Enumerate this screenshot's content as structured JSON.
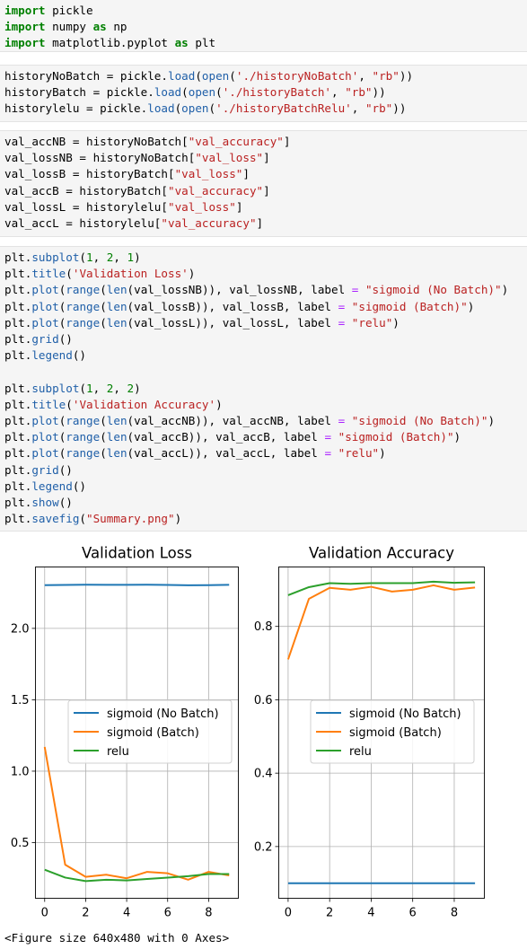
{
  "cells": [
    {
      "lines": [
        [
          [
            "kw",
            "import"
          ],
          [
            "t",
            " pickle"
          ]
        ],
        [
          [
            "kw",
            "import"
          ],
          [
            "t",
            " numpy "
          ],
          [
            "kw",
            "as"
          ],
          [
            "t",
            " np"
          ]
        ],
        [
          [
            "kw",
            "import"
          ],
          [
            "t",
            " matplotlib.pyplot "
          ],
          [
            "kw",
            "as"
          ],
          [
            "t",
            " plt"
          ]
        ]
      ]
    },
    {
      "lines": [
        [
          [
            "t",
            "historyNoBatch = pickle."
          ],
          [
            "fn",
            "load"
          ],
          [
            "t",
            "("
          ],
          [
            "fn",
            "open"
          ],
          [
            "t",
            "("
          ],
          [
            "str",
            "'./historyNoBatch'"
          ],
          [
            "t",
            ", "
          ],
          [
            "str",
            "\"rb\""
          ],
          [
            "t",
            "))"
          ]
        ],
        [
          [
            "t",
            "historyBatch = pickle."
          ],
          [
            "fn",
            "load"
          ],
          [
            "t",
            "("
          ],
          [
            "fn",
            "open"
          ],
          [
            "t",
            "("
          ],
          [
            "str",
            "'./historyBatch'"
          ],
          [
            "t",
            ", "
          ],
          [
            "str",
            "\"rb\""
          ],
          [
            "t",
            "))"
          ]
        ],
        [
          [
            "t",
            "historylelu = pickle."
          ],
          [
            "fn",
            "load"
          ],
          [
            "t",
            "("
          ],
          [
            "fn",
            "open"
          ],
          [
            "t",
            "("
          ],
          [
            "str",
            "'./historyBatchRelu'"
          ],
          [
            "t",
            ", "
          ],
          [
            "str",
            "\"rb\""
          ],
          [
            "t",
            "))"
          ]
        ]
      ]
    },
    {
      "lines": [
        [
          [
            "t",
            "val_accNB = historyNoBatch["
          ],
          [
            "str",
            "\"val_accuracy\""
          ],
          [
            "t",
            "]"
          ]
        ],
        [
          [
            "t",
            "val_lossNB = historyNoBatch["
          ],
          [
            "str",
            "\"val_loss\""
          ],
          [
            "t",
            "]"
          ]
        ],
        [
          [
            "t",
            "val_lossB = historyBatch["
          ],
          [
            "str",
            "\"val_loss\""
          ],
          [
            "t",
            "]"
          ]
        ],
        [
          [
            "t",
            "val_accB = historyBatch["
          ],
          [
            "str",
            "\"val_accuracy\""
          ],
          [
            "t",
            "]"
          ]
        ],
        [
          [
            "t",
            "val_lossL = historylelu["
          ],
          [
            "str",
            "\"val_loss\""
          ],
          [
            "t",
            "]"
          ]
        ],
        [
          [
            "t",
            "val_accL = historylelu["
          ],
          [
            "str",
            "\"val_accuracy\""
          ],
          [
            "t",
            "]"
          ]
        ]
      ]
    },
    {
      "lines": [
        [
          [
            "t",
            "plt."
          ],
          [
            "fn",
            "subplot"
          ],
          [
            "t",
            "("
          ],
          [
            "num",
            "1"
          ],
          [
            "t",
            ", "
          ],
          [
            "num",
            "2"
          ],
          [
            "t",
            ", "
          ],
          [
            "num",
            "1"
          ],
          [
            "t",
            ")"
          ]
        ],
        [
          [
            "t",
            "plt."
          ],
          [
            "fn",
            "title"
          ],
          [
            "t",
            "("
          ],
          [
            "str",
            "'Validation Loss'"
          ],
          [
            "t",
            ")"
          ]
        ],
        [
          [
            "t",
            "plt."
          ],
          [
            "fn",
            "plot"
          ],
          [
            "t",
            "("
          ],
          [
            "fn",
            "range"
          ],
          [
            "t",
            "("
          ],
          [
            "fn",
            "len"
          ],
          [
            "t",
            "(val_lossNB)), val_lossNB, label "
          ],
          [
            "op",
            "="
          ],
          [
            "t",
            " "
          ],
          [
            "str",
            "\"sigmoid (No Batch)\""
          ],
          [
            "t",
            ")"
          ]
        ],
        [
          [
            "t",
            "plt."
          ],
          [
            "fn",
            "plot"
          ],
          [
            "t",
            "("
          ],
          [
            "fn",
            "range"
          ],
          [
            "t",
            "("
          ],
          [
            "fn",
            "len"
          ],
          [
            "t",
            "(val_lossB)), val_lossB, label "
          ],
          [
            "op",
            "="
          ],
          [
            "t",
            " "
          ],
          [
            "str",
            "\"sigmoid (Batch)\""
          ],
          [
            "t",
            ")"
          ]
        ],
        [
          [
            "t",
            "plt."
          ],
          [
            "fn",
            "plot"
          ],
          [
            "t",
            "("
          ],
          [
            "fn",
            "range"
          ],
          [
            "t",
            "("
          ],
          [
            "fn",
            "len"
          ],
          [
            "t",
            "(val_lossL)), val_lossL, label "
          ],
          [
            "op",
            "="
          ],
          [
            "t",
            " "
          ],
          [
            "str",
            "\"relu\""
          ],
          [
            "t",
            ")"
          ]
        ],
        [
          [
            "t",
            "plt."
          ],
          [
            "fn",
            "grid"
          ],
          [
            "t",
            "()"
          ]
        ],
        [
          [
            "t",
            "plt."
          ],
          [
            "fn",
            "legend"
          ],
          [
            "t",
            "()"
          ]
        ],
        [
          [
            "t",
            ""
          ]
        ],
        [
          [
            "t",
            "plt."
          ],
          [
            "fn",
            "subplot"
          ],
          [
            "t",
            "("
          ],
          [
            "num",
            "1"
          ],
          [
            "t",
            ", "
          ],
          [
            "num",
            "2"
          ],
          [
            "t",
            ", "
          ],
          [
            "num",
            "2"
          ],
          [
            "t",
            ")"
          ]
        ],
        [
          [
            "t",
            "plt."
          ],
          [
            "fn",
            "title"
          ],
          [
            "t",
            "("
          ],
          [
            "str",
            "'Validation Accuracy'"
          ],
          [
            "t",
            ")"
          ]
        ],
        [
          [
            "t",
            "plt."
          ],
          [
            "fn",
            "plot"
          ],
          [
            "t",
            "("
          ],
          [
            "fn",
            "range"
          ],
          [
            "t",
            "("
          ],
          [
            "fn",
            "len"
          ],
          [
            "t",
            "(val_accNB)), val_accNB, label "
          ],
          [
            "op",
            "="
          ],
          [
            "t",
            " "
          ],
          [
            "str",
            "\"sigmoid (No Batch)\""
          ],
          [
            "t",
            ")"
          ]
        ],
        [
          [
            "t",
            "plt."
          ],
          [
            "fn",
            "plot"
          ],
          [
            "t",
            "("
          ],
          [
            "fn",
            "range"
          ],
          [
            "t",
            "("
          ],
          [
            "fn",
            "len"
          ],
          [
            "t",
            "(val_accB)), val_accB, label "
          ],
          [
            "op",
            "="
          ],
          [
            "t",
            " "
          ],
          [
            "str",
            "\"sigmoid (Batch)\""
          ],
          [
            "t",
            ")"
          ]
        ],
        [
          [
            "t",
            "plt."
          ],
          [
            "fn",
            "plot"
          ],
          [
            "t",
            "("
          ],
          [
            "fn",
            "range"
          ],
          [
            "t",
            "("
          ],
          [
            "fn",
            "len"
          ],
          [
            "t",
            "(val_accL)), val_accL, label "
          ],
          [
            "op",
            "="
          ],
          [
            "t",
            " "
          ],
          [
            "str",
            "\"relu\""
          ],
          [
            "t",
            ")"
          ]
        ],
        [
          [
            "t",
            "plt."
          ],
          [
            "fn",
            "grid"
          ],
          [
            "t",
            "()"
          ]
        ],
        [
          [
            "t",
            "plt."
          ],
          [
            "fn",
            "legend"
          ],
          [
            "t",
            "()"
          ]
        ],
        [
          [
            "t",
            "plt."
          ],
          [
            "fn",
            "show"
          ],
          [
            "t",
            "()"
          ]
        ],
        [
          [
            "t",
            "plt."
          ],
          [
            "fn",
            "savefig"
          ],
          [
            "t",
            "("
          ],
          [
            "str",
            "\"Summary.png\""
          ],
          [
            "t",
            ")"
          ]
        ]
      ]
    }
  ],
  "output_text": "<Figure size 640x480 with 0 Axes>",
  "colors": {
    "blue": "#1f77b4",
    "orange": "#ff7f0e",
    "green": "#2ca02c"
  },
  "chart_data": [
    {
      "type": "line",
      "title": "Validation Loss",
      "x": [
        0,
        1,
        2,
        3,
        4,
        5,
        6,
        7,
        8,
        9
      ],
      "xticks": [
        0,
        2,
        4,
        6,
        8
      ],
      "yticks": [
        0.5,
        1.0,
        1.5,
        2.0
      ],
      "ytick_labels": [
        "0.5",
        "1.0",
        "1.5",
        "2.0"
      ],
      "xlim": [
        -0.45,
        9.45
      ],
      "ylim": [
        0.11,
        2.43
      ],
      "grid": true,
      "legend": "center-right",
      "series": [
        {
          "name": "sigmoid (No Batch)",
          "color": "blue",
          "values": [
            2.303,
            2.304,
            2.306,
            2.305,
            2.305,
            2.306,
            2.304,
            2.302,
            2.303,
            2.305
          ]
        },
        {
          "name": "sigmoid (Batch)",
          "color": "orange",
          "values": [
            1.17,
            0.345,
            0.26,
            0.275,
            0.25,
            0.295,
            0.285,
            0.24,
            0.295,
            0.27
          ]
        },
        {
          "name": "relu",
          "color": "green",
          "values": [
            0.31,
            0.255,
            0.23,
            0.24,
            0.235,
            0.245,
            0.255,
            0.265,
            0.28,
            0.28
          ]
        }
      ]
    },
    {
      "type": "line",
      "title": "Validation Accuracy",
      "x": [
        0,
        1,
        2,
        3,
        4,
        5,
        6,
        7,
        8,
        9
      ],
      "xticks": [
        0,
        2,
        4,
        6,
        8
      ],
      "yticks": [
        0.2,
        0.4,
        0.6,
        0.8
      ],
      "ytick_labels": [
        "0.2",
        "0.4",
        "0.6",
        "0.8"
      ],
      "xlim": [
        -0.45,
        9.45
      ],
      "ylim": [
        0.059,
        0.962
      ],
      "grid": true,
      "legend": "center-right",
      "series": [
        {
          "name": "sigmoid (No Batch)",
          "color": "blue",
          "values": [
            0.1,
            0.1,
            0.1,
            0.1,
            0.1,
            0.1,
            0.1,
            0.1,
            0.1,
            0.1
          ]
        },
        {
          "name": "sigmoid (Batch)",
          "color": "orange",
          "values": [
            0.71,
            0.875,
            0.905,
            0.9,
            0.908,
            0.895,
            0.9,
            0.912,
            0.9,
            0.906
          ]
        },
        {
          "name": "relu",
          "color": "green",
          "values": [
            0.885,
            0.907,
            0.918,
            0.916,
            0.918,
            0.918,
            0.918,
            0.922,
            0.919,
            0.92
          ]
        }
      ]
    }
  ]
}
